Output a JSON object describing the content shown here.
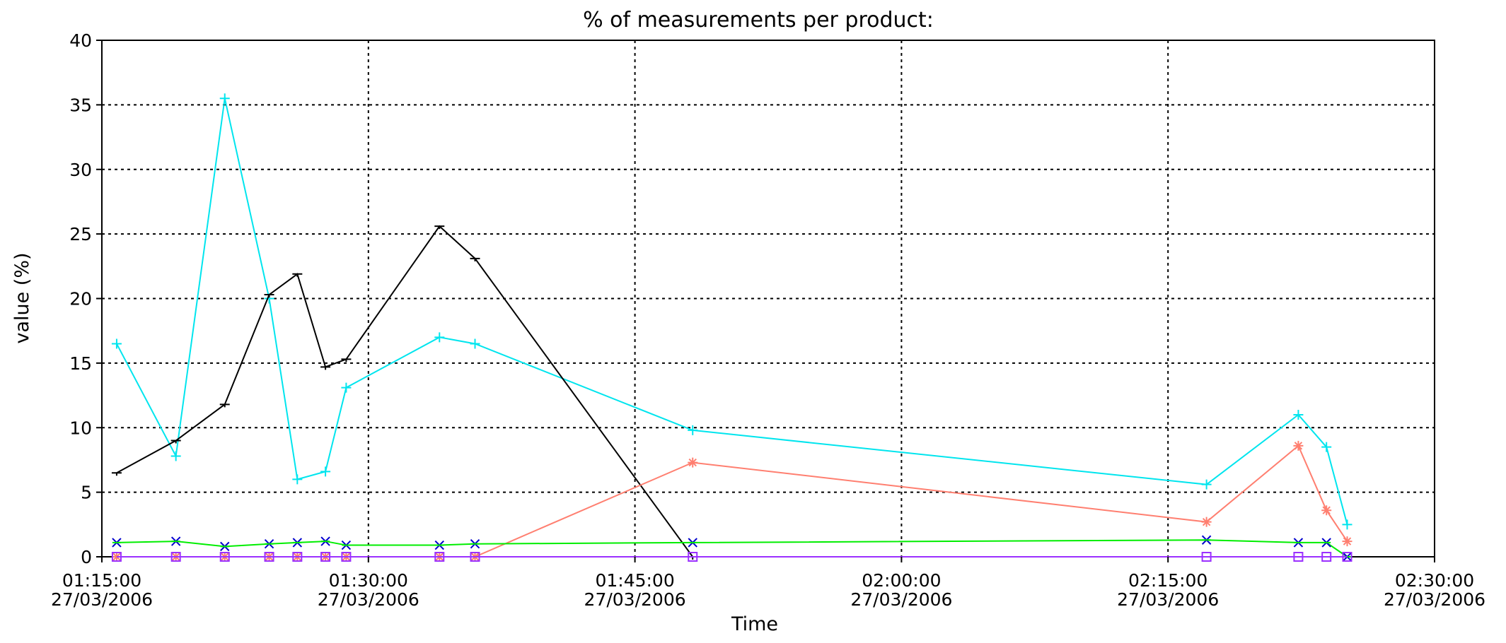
{
  "chart_data": {
    "type": "line",
    "title": "% of measurements per product:",
    "xlabel": "Time",
    "ylabel": "value (%)",
    "ylim": [
      0,
      40
    ],
    "xlim": [
      "01:15:00 27/03/2006",
      "02:30:00 27/03/2006"
    ],
    "grid": true,
    "yticks": [
      "0",
      "5",
      "10",
      "15",
      "20",
      "25",
      "30",
      "35",
      "40"
    ],
    "xticks": [
      {
        "time": "01:15:00",
        "date": "27/03/2006"
      },
      {
        "time": "01:30:00",
        "date": "27/03/2006"
      },
      {
        "time": "01:45:00",
        "date": "27/03/2006"
      },
      {
        "time": "02:00:00",
        "date": "27/03/2006"
      },
      {
        "time": "02:15:00",
        "date": "27/03/2006"
      },
      {
        "time": "02:30:00",
        "date": "27/03/2006"
      }
    ],
    "series": [
      {
        "color": "#00e5ee",
        "marker": "plus",
        "x": [
          "01:15:50",
          "01:19:10",
          "01:21:55",
          "01:24:25",
          "01:26:00",
          "01:27:35",
          "01:28:45",
          "01:34:00",
          "01:36:00",
          "01:48:15",
          "02:17:10",
          "02:22:20",
          "02:23:55",
          "02:25:05"
        ],
        "values": [
          16.5,
          7.8,
          35.5,
          20,
          6,
          6.6,
          13.1,
          17,
          16.5,
          9.8,
          5.6,
          11,
          8.5,
          2.5
        ]
      },
      {
        "color": "#000000",
        "marker": "dash",
        "x": [
          "01:15:50",
          "01:19:10",
          "01:21:55",
          "01:24:25",
          "01:26:00",
          "01:27:35",
          "01:28:45",
          "01:34:00",
          "01:36:00",
          "01:48:15"
        ],
        "values": [
          6.5,
          9,
          11.8,
          20.3,
          21.9,
          14.7,
          15.3,
          25.6,
          23.1,
          0
        ]
      },
      {
        "color": "#ff7f70",
        "marker": "asterisk",
        "x": [
          "01:15:50",
          "01:19:10",
          "01:21:55",
          "01:24:25",
          "01:26:00",
          "01:27:35",
          "01:28:45",
          "01:34:00",
          "01:36:00",
          "01:48:15",
          "02:17:10",
          "02:22:20",
          "02:23:55",
          "02:25:05"
        ],
        "values": [
          0,
          0,
          0,
          0,
          0,
          0,
          0,
          0,
          0,
          7.3,
          2.7,
          8.6,
          3.6,
          1.2
        ]
      },
      {
        "color": "#00ee00",
        "marker": "x",
        "x": [
          "01:15:50",
          "01:19:10",
          "01:21:55",
          "01:24:25",
          "01:26:00",
          "01:27:35",
          "01:28:45",
          "01:34:00",
          "01:36:00",
          "01:48:15",
          "02:17:10",
          "02:22:20",
          "02:23:55",
          "02:25:05"
        ],
        "values": [
          1.1,
          1.2,
          0.8,
          1,
          1.1,
          1.2,
          0.9,
          0.9,
          1,
          1.1,
          1.3,
          1.1,
          1.1,
          0
        ]
      },
      {
        "color": "#9b30ff",
        "marker": "square",
        "x": [
          "01:15:50",
          "01:19:10",
          "01:21:55",
          "01:24:25",
          "01:26:00",
          "01:27:35",
          "01:28:45",
          "01:34:00",
          "01:36:00",
          "01:48:15",
          "02:17:10",
          "02:22:20",
          "02:23:55",
          "02:25:05"
        ],
        "values": [
          0,
          0,
          0,
          0,
          0,
          0,
          0,
          0,
          0,
          0,
          0,
          0,
          0,
          0
        ]
      }
    ]
  }
}
